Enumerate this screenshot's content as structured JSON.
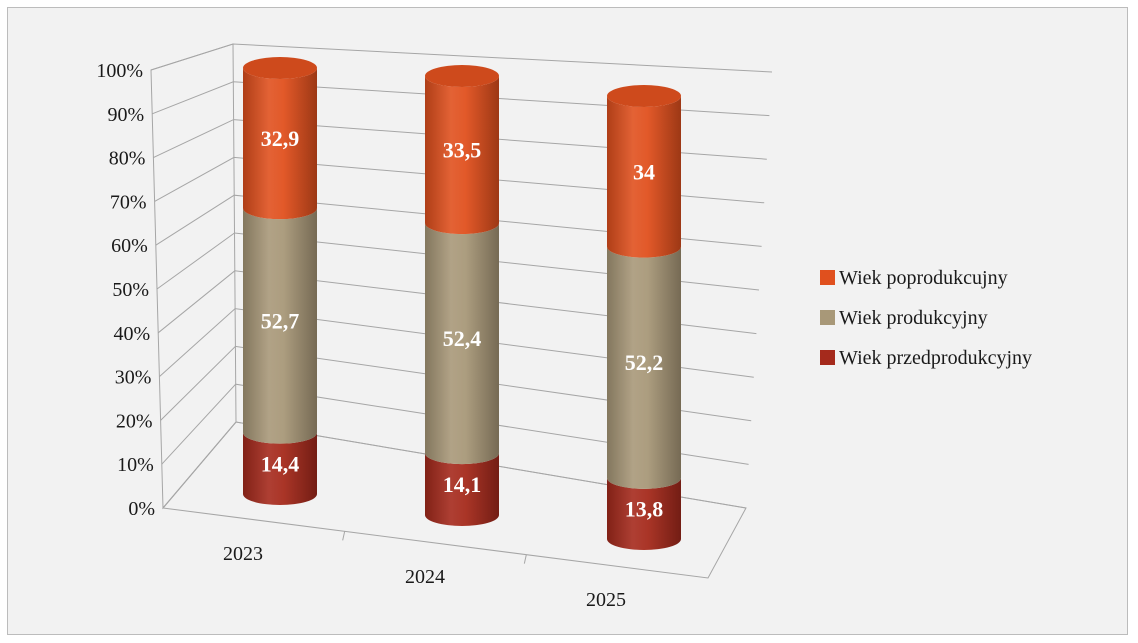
{
  "chart_data": {
    "type": "bar",
    "stacked": true,
    "percent_stacked": true,
    "style": "3d-cylinder",
    "categories": [
      "2023",
      "2024",
      "2025"
    ],
    "series": [
      {
        "name": "Wiek przedprodukcyjny",
        "values": [
          14.4,
          14.1,
          13.8
        ],
        "labels": [
          "14,4",
          "14,1",
          "13,8"
        ],
        "color": "#a52a1c"
      },
      {
        "name": "Wiek produkcyjny",
        "values": [
          52.7,
          52.4,
          52.2
        ],
        "labels": [
          "52,7",
          "52,4",
          "52,2"
        ],
        "color": "#a89878"
      },
      {
        "name": "Wiek poprodukcujny",
        "values": [
          32.9,
          33.5,
          34
        ],
        "labels": [
          "32,9",
          "33,5",
          "34"
        ],
        "color": "#e0501e"
      }
    ],
    "y_ticks": [
      "0%",
      "10%",
      "20%",
      "30%",
      "40%",
      "50%",
      "60%",
      "70%",
      "80%",
      "90%",
      "100%"
    ],
    "ylim": [
      0,
      100
    ],
    "grid": true,
    "legend_position": "right",
    "legend_order": [
      "Wiek poprodukcujny",
      "Wiek produkcyjny",
      "Wiek przedprodukcyjny"
    ],
    "title": "",
    "xlabel": "",
    "ylabel": ""
  }
}
